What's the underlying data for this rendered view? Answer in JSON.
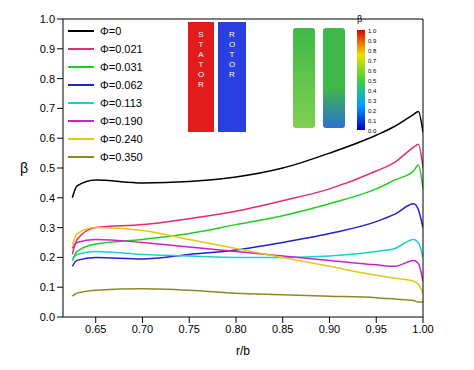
{
  "chart_data": {
    "type": "line",
    "x_label": "r/b",
    "y_label": "β",
    "x": [
      0.625,
      0.63,
      0.65,
      0.7,
      0.75,
      0.8,
      0.85,
      0.9,
      0.95,
      0.97,
      0.99,
      0.995,
      1.0
    ],
    "xlim": [
      0.615,
      1.0
    ],
    "xticks": [
      0.65,
      {
        "value": 0.7,
        "label": "0.70"
      },
      0.75,
      {
        "value": 0.8,
        "label": "0.80"
      },
      0.85,
      {
        "value": 0.9,
        "label": "0.90"
      },
      0.95,
      {
        "value": 1.0,
        "label": "1.00"
      }
    ],
    "ylim": [
      0,
      1.0
    ],
    "yticks": [
      {
        "value": 0,
        "label": "0.0"
      },
      0.1,
      0.2,
      0.3,
      0.4,
      0.5,
      0.6,
      0.7,
      0.8,
      0.9,
      {
        "value": 1.0,
        "label": "1.0"
      }
    ],
    "legend": "top-left",
    "series": [
      {
        "name": "Φ=0",
        "color": "#000000",
        "values": [
          0.4,
          0.44,
          0.46,
          0.45,
          0.455,
          0.47,
          0.5,
          0.55,
          0.61,
          0.64,
          0.68,
          0.69,
          0.62
        ]
      },
      {
        "name": "Φ=0.021",
        "color": "#e0306a",
        "values": [
          0.21,
          0.26,
          0.3,
          0.31,
          0.33,
          0.355,
          0.39,
          0.43,
          0.49,
          0.52,
          0.57,
          0.58,
          0.5
        ]
      },
      {
        "name": "Φ=0.031",
        "color": "#22cc22",
        "values": [
          0.19,
          0.22,
          0.245,
          0.26,
          0.28,
          0.31,
          0.34,
          0.38,
          0.43,
          0.46,
          0.49,
          0.51,
          0.43
        ]
      },
      {
        "name": "Φ=0.062",
        "color": "#2222cc",
        "values": [
          0.17,
          0.19,
          0.2,
          0.195,
          0.21,
          0.225,
          0.25,
          0.28,
          0.32,
          0.345,
          0.38,
          0.36,
          0.3
        ]
      },
      {
        "name": "Φ=0.113",
        "color": "#22cccc",
        "values": [
          0.19,
          0.21,
          0.22,
          0.21,
          0.205,
          0.2,
          0.2,
          0.205,
          0.22,
          0.23,
          0.26,
          0.25,
          0.2
        ]
      },
      {
        "name": "Φ=0.190",
        "color": "#cc22cc",
        "values": [
          0.23,
          0.25,
          0.26,
          0.25,
          0.235,
          0.22,
          0.205,
          0.19,
          0.175,
          0.17,
          0.19,
          0.18,
          0.12
        ]
      },
      {
        "name": "Φ=0.240",
        "color": "#e6c619",
        "values": [
          0.24,
          0.28,
          0.3,
          0.29,
          0.26,
          0.23,
          0.2,
          0.17,
          0.14,
          0.13,
          0.12,
          0.11,
          0.08
        ]
      },
      {
        "name": "Φ=0.350",
        "color": "#8a8a22",
        "values": [
          0.07,
          0.08,
          0.09,
          0.095,
          0.09,
          0.08,
          0.075,
          0.07,
          0.065,
          0.06,
          0.055,
          0.05,
          0.05
        ]
      }
    ],
    "annotations": [
      "STATOR",
      "ROTOR"
    ],
    "colorbar": {
      "label": "β",
      "range": [
        0,
        1.0
      ],
      "ticks": [
        {
          "value": 0,
          "label": "0.0"
        },
        0.1,
        0.2,
        0.3,
        0.4,
        0.5,
        0.6,
        0.7,
        0.8,
        0.9,
        {
          "value": 1.0,
          "label": "1.0"
        }
      ]
    }
  }
}
